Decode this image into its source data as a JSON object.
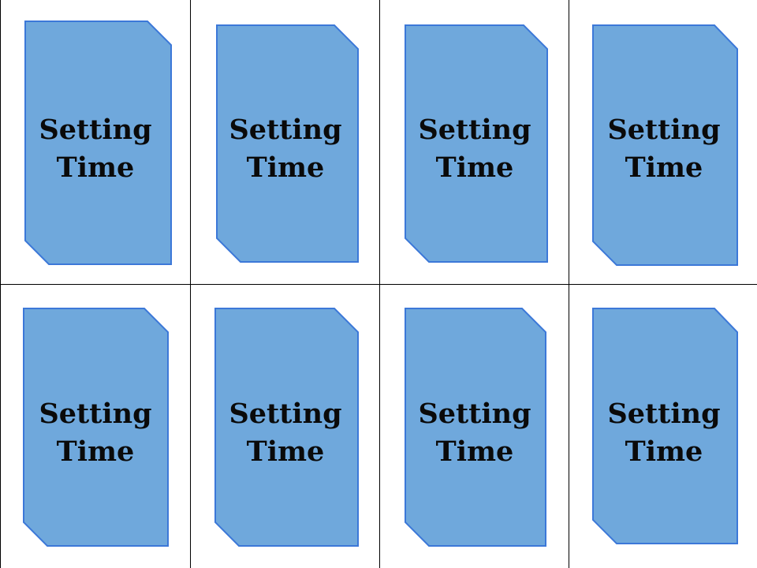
{
  "page": {
    "colors": {
      "card_fill": "#6fa8dc",
      "card_border": "#3c78d8",
      "grid_line": "#000000",
      "text": "#0a0a0a",
      "background": "#ffffff"
    }
  },
  "cards": [
    {
      "line1": "Setting",
      "line2": "Time"
    },
    {
      "line1": "Setting",
      "line2": "Time"
    },
    {
      "line1": "Setting",
      "line2": "Time"
    },
    {
      "line1": "Setting",
      "line2": "Time"
    },
    {
      "line1": "Setting",
      "line2": "Time"
    },
    {
      "line1": "Setting",
      "line2": "Time"
    },
    {
      "line1": "Setting",
      "line2": "Time"
    },
    {
      "line1": "Setting",
      "line2": "Time"
    }
  ]
}
